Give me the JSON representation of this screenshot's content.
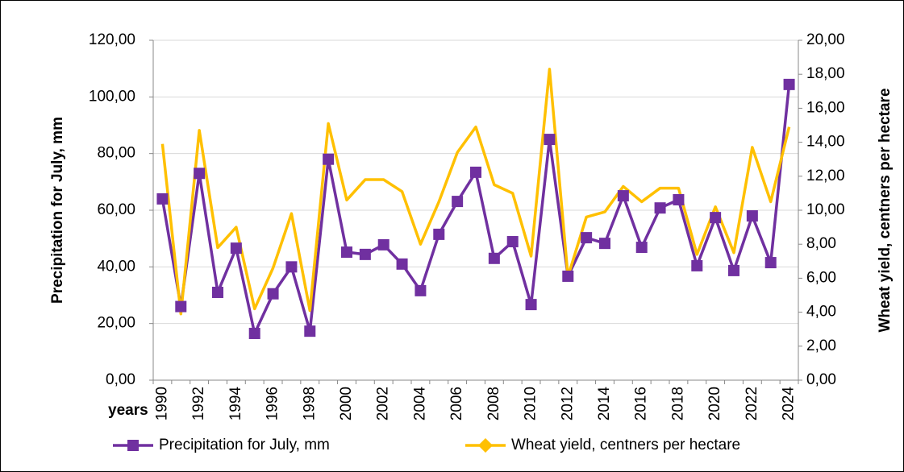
{
  "chart_data": {
    "type": "line",
    "x_label": "years",
    "y_label": "Precipitation for July, mm",
    "y2_label": "Wheat yield, centners per hectare",
    "categories": [
      "1990",
      null,
      "1992",
      null,
      "1994",
      null,
      "1996",
      null,
      "1998",
      null,
      "2000",
      null,
      "2002",
      null,
      "2004",
      null,
      "2006",
      null,
      "2008",
      null,
      "2010",
      null,
      "2012",
      null,
      "2014",
      null,
      "2016",
      null,
      "2018",
      null,
      "2020",
      null,
      "2022",
      null,
      "2024"
    ],
    "series": [
      {
        "name": "Precipitation for July, mm",
        "color": "#7030a0",
        "marker": "square",
        "values": [
          64,
          26,
          73,
          31,
          46.6,
          16.5,
          30.5,
          40,
          17.3,
          78,
          45.2,
          44.4,
          47.8,
          41,
          31.6,
          51.5,
          63.1,
          73.4,
          43,
          48.9,
          26.7,
          85,
          36.7,
          50.3,
          48.3,
          65.1,
          46.9,
          60.8,
          63.7,
          40.4,
          57.4,
          38.7,
          58,
          41.5,
          104.4
        ]
      },
      {
        "name": "Wheat yield, centners per hectare",
        "color": "#ffc000",
        "marker": "diamond",
        "axis": "y2",
        "values": [
          13.9,
          3.9,
          14.7,
          7.8,
          9.0,
          4.2,
          6.6,
          9.8,
          4.1,
          15.1,
          10.6,
          11.8,
          11.8,
          11.1,
          8.0,
          10.5,
          13.4,
          14.9,
          11.5,
          11.0,
          7.3,
          18.3,
          6.1,
          9.6,
          9.9,
          11.4,
          10.5,
          11.3,
          11.3,
          7.4,
          10.2,
          7.5,
          13.7,
          10.5,
          14.9
        ]
      }
    ],
    "ylim": [
      0,
      120
    ],
    "yticks": [
      {
        "value": 0,
        "label": "0,00"
      },
      {
        "value": 20,
        "label": "20,00"
      },
      {
        "value": 40,
        "label": "40,00"
      },
      {
        "value": 60,
        "label": "60,00"
      },
      {
        "value": 80,
        "label": "80,00"
      },
      {
        "value": 100,
        "label": "100,00"
      },
      {
        "value": 120,
        "label": "120,00"
      }
    ],
    "y2lim": [
      0,
      20
    ],
    "y2ticks": [
      {
        "value": 0,
        "label": "0,00"
      },
      {
        "value": 2,
        "label": "2,00"
      },
      {
        "value": 4,
        "label": "4,00"
      },
      {
        "value": 6,
        "label": "6,00"
      },
      {
        "value": 8,
        "label": "8,00"
      },
      {
        "value": 10,
        "label": "10,00"
      },
      {
        "value": 12,
        "label": "12,00"
      },
      {
        "value": 14,
        "label": "14,00"
      },
      {
        "value": 16,
        "label": "16,00"
      },
      {
        "value": 18,
        "label": "18,00"
      },
      {
        "value": 20,
        "label": "20,00"
      }
    ],
    "grid": true,
    "legend": "bottom"
  }
}
